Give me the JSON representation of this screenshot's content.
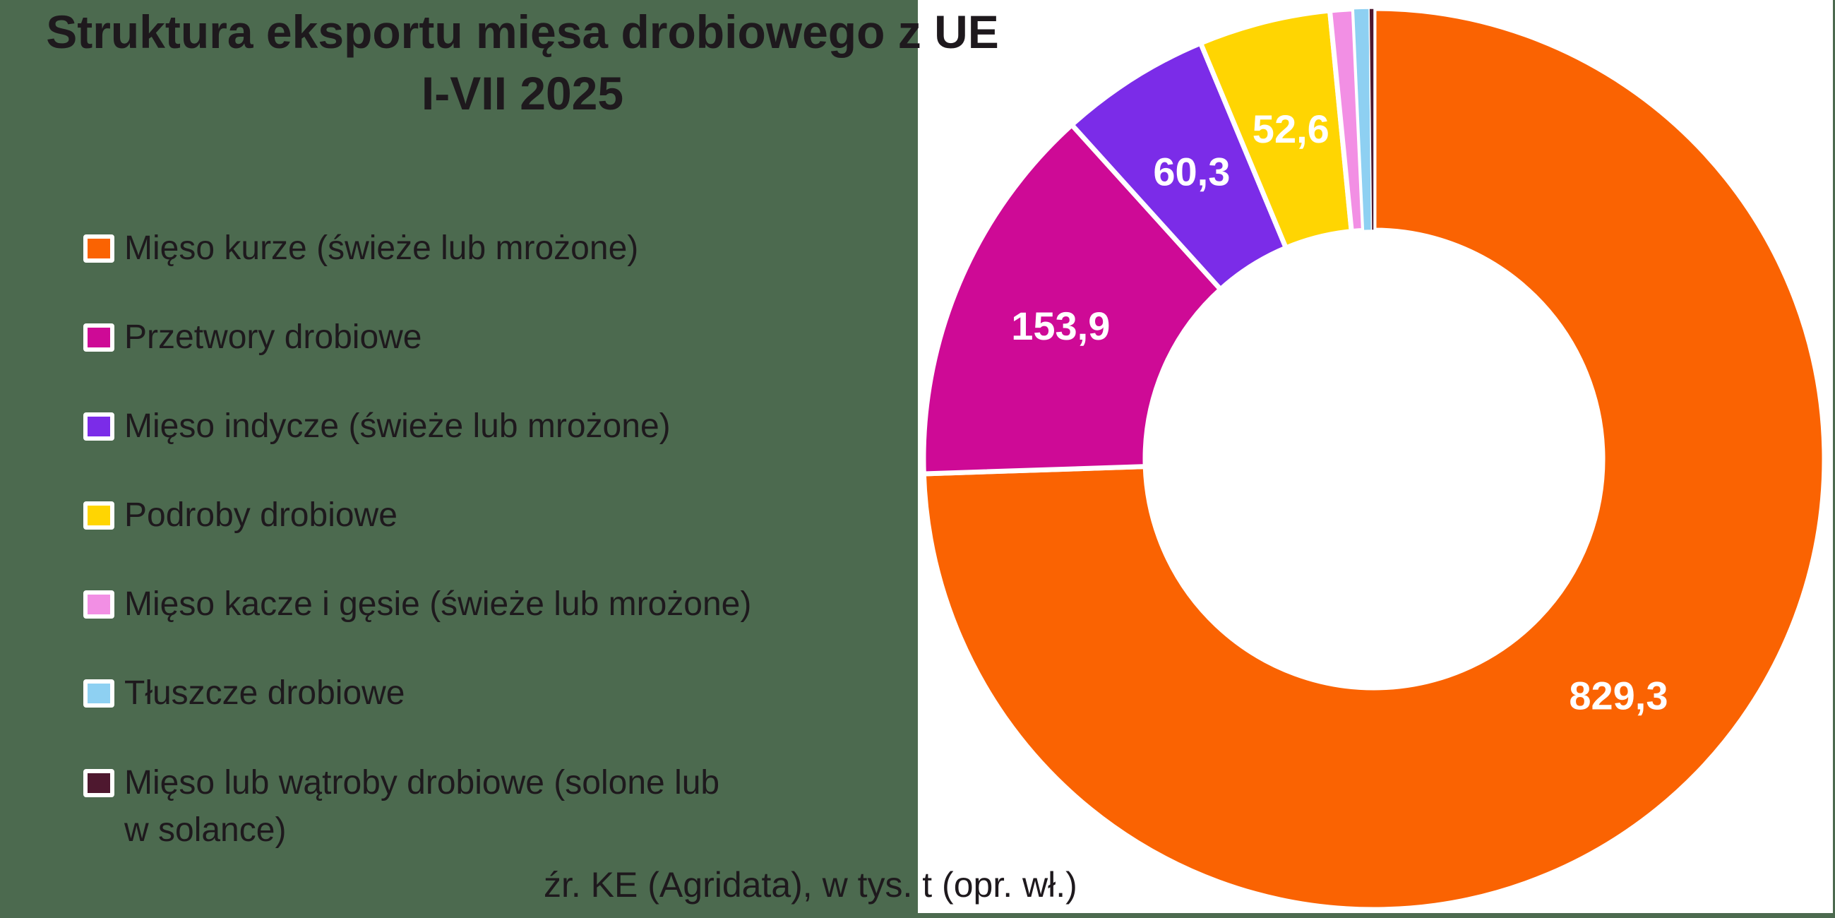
{
  "title": {
    "line1": "Struktura eksportu mięsa drobiowego z UE",
    "line2": "I-VII 2025"
  },
  "source_note": "źr. KE (Agridata), w tys. t (opr. wł.)",
  "colors": {
    "background": "#4C6A4F",
    "panel": "#FFFFFF",
    "text": "#1E191D",
    "value_label_text": "#FFFFFF"
  },
  "legend": {
    "items": [
      {
        "label": "Mięso kurze (świeże lub mrożone)",
        "color": "#FA6302"
      },
      {
        "label": "Przetwory drobiowe",
        "color": "#CE0A96"
      },
      {
        "label": "Mięso indycze (świeże lub mrożone)",
        "color": "#7B2CE8"
      },
      {
        "label": "Podroby drobiowe",
        "color": "#FFD502"
      },
      {
        "label": "Mięso kacze i gęsie (świeże lub mrożone)",
        "color": "#F28FE4"
      },
      {
        "label": "Tłuszcze drobiowe",
        "color": "#8ED0F2"
      },
      {
        "label": "Mięso lub wątroby drobiowe (solone lub\nw solance)",
        "color": "#4E182F"
      }
    ]
  },
  "chart_data": {
    "type": "pie",
    "subtype": "donut",
    "title": "Struktura eksportu mięsa drobiowego z UE I-VII 2025",
    "unit": "tys. t",
    "start_angle_deg": 0,
    "direction": "clockwise",
    "legend_position": "left",
    "slices": [
      {
        "label": "Mięso kurze (świeże lub mrożone)",
        "value": 829.3,
        "value_label": "829,3",
        "color": "#FA6302"
      },
      {
        "label": "Przetwory drobiowe",
        "value": 153.9,
        "value_label": "153,9",
        "color": "#CE0A96"
      },
      {
        "label": "Mięso indycze (świeże lub mrożone)",
        "value": 60.3,
        "value_label": "60,3",
        "color": "#7B2CE8"
      },
      {
        "label": "Podroby drobiowe",
        "value": 52.6,
        "value_label": "52,6",
        "color": "#FFD502"
      },
      {
        "label": "Mięso kacze i gęsie (świeże lub mrożone)",
        "value": 9.4,
        "value_label": "",
        "color": "#F28FE4"
      },
      {
        "label": "Tłuszcze drobiowe",
        "value": 6.1,
        "value_label": "",
        "color": "#8ED0F2"
      },
      {
        "label": "Mięso lub wątroby drobiowe (solone lub w solance)",
        "value": 1.9,
        "value_label": "",
        "color": "#4E182F"
      }
    ]
  }
}
